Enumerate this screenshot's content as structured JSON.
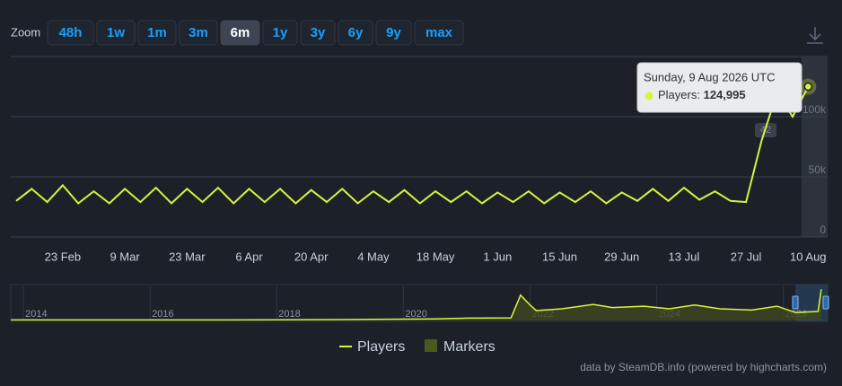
{
  "zoom": {
    "label": "Zoom",
    "buttons": [
      "48h",
      "1w",
      "1m",
      "3m",
      "6m",
      "1y",
      "3y",
      "6y",
      "9y",
      "max"
    ],
    "selected": "6m"
  },
  "chart_data": [
    {
      "type": "line",
      "categories": [
        null,
        null,
        null,
        "23 Feb",
        null,
        null,
        null,
        "9 Mar",
        null,
        null,
        null,
        "23 Mar",
        null,
        null,
        null,
        "6 Apr",
        null,
        null,
        null,
        "20 Apr",
        null,
        null,
        null,
        "4 May",
        null,
        null,
        null,
        "18 May",
        null,
        null,
        null,
        "1 Jun",
        null,
        null,
        null,
        "15 Jun",
        null,
        null,
        null,
        "29 Jun",
        null,
        null,
        null,
        "13 Jul",
        null,
        null,
        null,
        "27 Jul",
        null,
        null,
        null,
        "10 Aug"
      ],
      "series": [
        {
          "name": "Players",
          "color": "#d4f53c",
          "values": [
            30000,
            40000,
            29000,
            43000,
            28000,
            38000,
            28000,
            40000,
            29000,
            41000,
            28000,
            40000,
            29000,
            41000,
            28000,
            40000,
            29000,
            40000,
            28000,
            39000,
            29000,
            40000,
            28000,
            38000,
            29000,
            39000,
            28000,
            38000,
            29000,
            38000,
            28000,
            37000,
            29000,
            38000,
            28000,
            37000,
            29000,
            38000,
            28000,
            37000,
            30000,
            40000,
            30000,
            41000,
            31000,
            38000,
            30000,
            29000,
            80000,
            120000,
            100000,
            124995
          ],
          "value_labels": [
            null,
            null,
            null,
            null,
            null,
            null,
            null,
            null,
            null,
            null,
            null,
            null,
            null,
            null,
            null,
            null,
            null,
            null,
            null,
            null,
            null,
            null,
            null,
            null,
            null,
            null,
            null,
            null,
            null,
            null,
            null,
            null,
            null,
            null,
            null,
            null,
            null,
            null,
            null,
            null,
            null,
            null,
            null,
            null,
            null,
            null,
            null,
            null,
            null,
            null,
            null,
            "124,995"
          ]
        }
      ],
      "ylim": [
        0,
        150000
      ],
      "yticks": [
        0,
        {
          "value": 50000,
          "label": "50k"
        },
        {
          "value": 100000,
          "label": "100k"
        }
      ],
      "grid": true,
      "tooltip": {
        "title": "Sunday, 9 Aug 2026 UTC",
        "label": "Players:"
      },
      "annotation": "42",
      "markers": {
        "name": "Markers",
        "color": "#4a5a1e"
      }
    },
    {
      "type": "area",
      "color": "#d4f53c",
      "fill": "#3f4a1f",
      "x": [
        2013.8,
        2016,
        2018,
        2019.5,
        2020.5,
        2021.0,
        2021.7,
        2021.85,
        2022.0,
        2022.1,
        2022.5,
        2023.0,
        2023.3,
        2023.8,
        2024.2,
        2024.6,
        2025.0,
        2025.5,
        2025.9,
        2026.2,
        2026.55,
        2026.6
      ],
      "values": [
        2000,
        2000,
        2500,
        4000,
        6000,
        9000,
        10000,
        98000,
        60000,
        38000,
        45000,
        62000,
        50000,
        55000,
        45000,
        60000,
        45000,
        40000,
        55000,
        30000,
        35000,
        120000
      ],
      "xlim": [
        2013.8,
        2026.7
      ],
      "ylim": [
        0,
        135000
      ],
      "xticks": [
        2014,
        2016,
        2018,
        2020,
        2022,
        2024,
        2026
      ]
    }
  ],
  "credit": "data by SteamDB.info (powered by highcharts.com)"
}
